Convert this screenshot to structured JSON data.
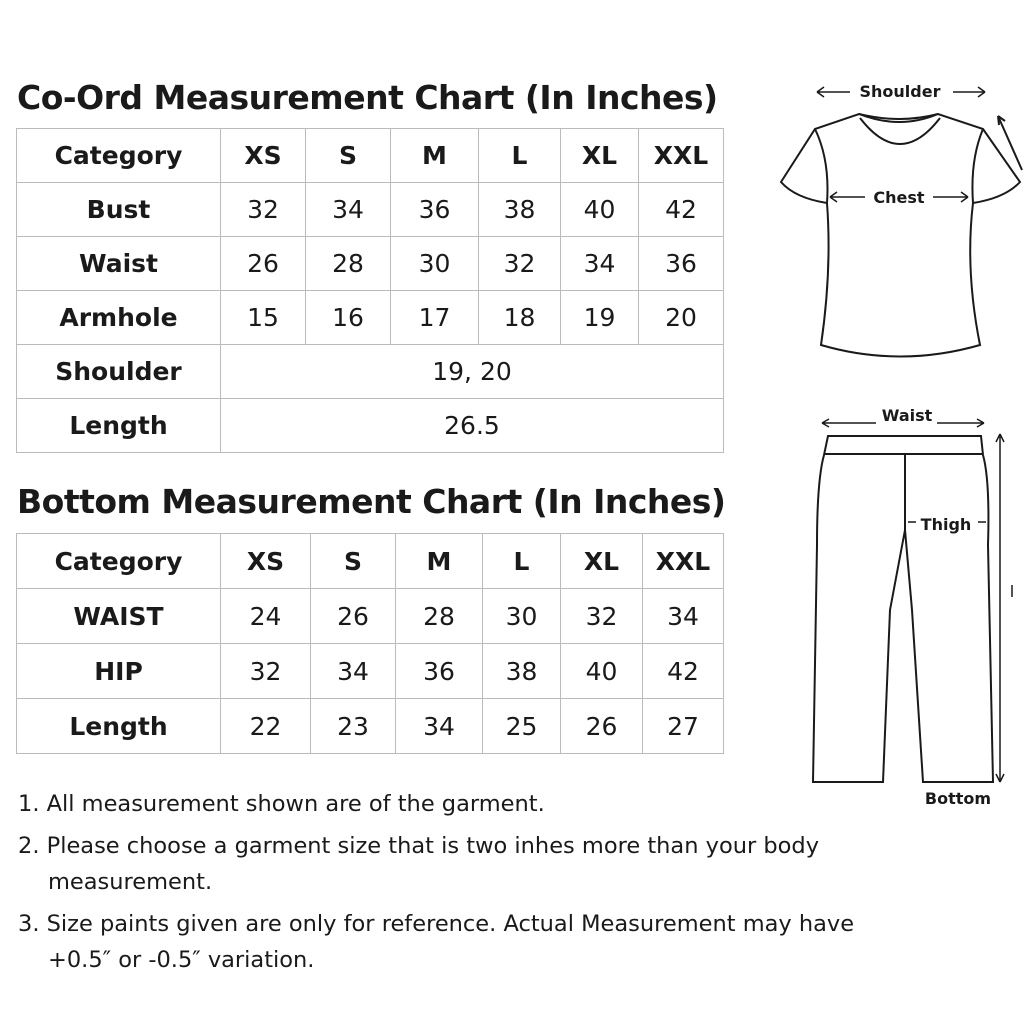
{
  "coord": {
    "title": "Co-Ord Measurement Chart (In Inches)",
    "header": [
      "Category",
      "XS",
      "S",
      "M",
      "L",
      "XL",
      "XXL"
    ],
    "rows": [
      [
        "Bust",
        "32",
        "34",
        "36",
        "38",
        "40",
        "42"
      ],
      [
        "Waist",
        "26",
        "28",
        "30",
        "32",
        "34",
        "36"
      ],
      [
        "Armhole",
        "15",
        "16",
        "17",
        "18",
        "19",
        "20"
      ]
    ],
    "shoulder": {
      "label": "Shoulder",
      "value": "19, 20"
    },
    "length": {
      "label": "Length",
      "value": "26.5"
    }
  },
  "bottom": {
    "title": "Bottom Measurement Chart (In Inches)",
    "header": [
      "Category",
      "XS",
      "S",
      "M",
      "L",
      "XL",
      "XXL"
    ],
    "rows": [
      [
        "WAIST",
        "24",
        "26",
        "28",
        "30",
        "32",
        "34"
      ],
      [
        "HIP",
        "32",
        "34",
        "36",
        "38",
        "40",
        "42"
      ],
      [
        "Length",
        "22",
        "23",
        "34",
        "25",
        "26",
        "27"
      ]
    ]
  },
  "notes": [
    "1. All measurement shown are of the garment.",
    "2. Please choose a garment size that is two inhes more than your body measurement.",
    "3. Size paints given are only for reference. Actual Measurement may have +0.5″ or -0.5″ variation."
  ],
  "diagram": {
    "shoulder": "Shoulder",
    "chest": "Chest",
    "waist": "Waist",
    "thigh": "Thigh",
    "bottom": "Bottom"
  }
}
